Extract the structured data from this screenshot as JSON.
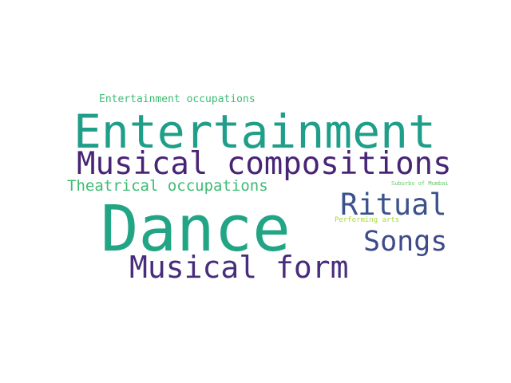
{
  "words": [
    {
      "text": "Entertainment occupations",
      "color": "#3dbc74"
    },
    {
      "text": "Entertainment",
      "color": "#1f9e89"
    },
    {
      "text": "Musical compositions",
      "color": "#482475"
    },
    {
      "text": "Theatrical occupations",
      "color": "#3dbc74"
    },
    {
      "text": "Suburbs of Mumbai",
      "color": "#5ec962"
    },
    {
      "text": "Ritual",
      "color": "#3b528b"
    },
    {
      "text": "Dance",
      "color": "#21a585"
    },
    {
      "text": "Performing arts",
      "color": "#a5db36"
    },
    {
      "text": "Songs",
      "color": "#3e4a89"
    },
    {
      "text": "Musical form",
      "color": "#472d7b"
    }
  ]
}
